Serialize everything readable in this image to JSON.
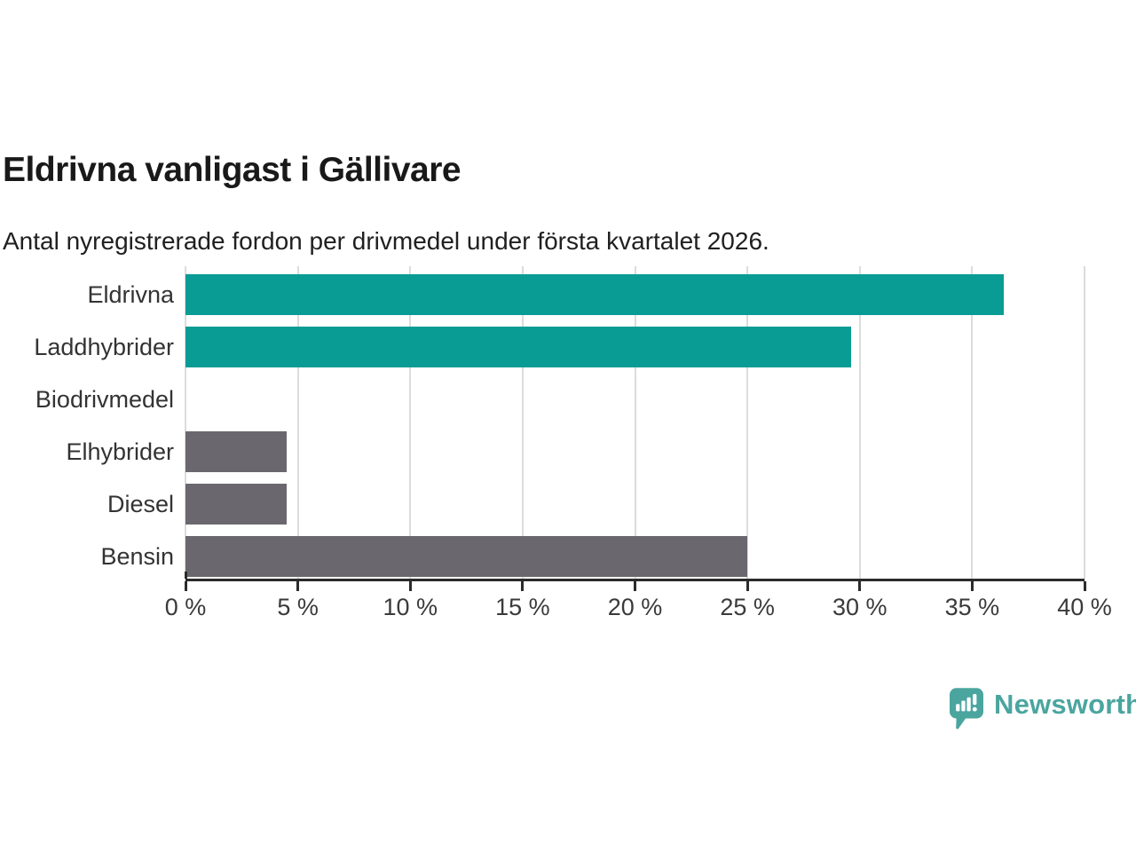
{
  "header": {
    "title": "Eldrivna vanligast i Gällivare",
    "subtitle": "Antal nyregistrerade fordon per drivmedel under första kvartalet 2026."
  },
  "chart_data": {
    "type": "bar",
    "orientation": "horizontal",
    "title": "Eldrivna vanligast i Gällivare",
    "xlabel": "",
    "ylabel": "",
    "unit": "%",
    "categories": [
      "Eldrivna",
      "Laddhybrider",
      "Biodrivmedel",
      "Elhybrider",
      "Diesel",
      "Bensin"
    ],
    "values": [
      36.4,
      29.6,
      0,
      4.5,
      4.5,
      25.0
    ],
    "bar_colors": [
      "#089c94",
      "#089c94",
      "#6a686e",
      "#6a686e",
      "#6a686e",
      "#6a686e"
    ],
    "xlim": [
      0,
      40
    ],
    "x_tick_values": [
      0,
      5,
      10,
      15,
      20,
      25,
      30,
      35,
      40
    ],
    "x_tick_labels": [
      "0 %",
      "5 %",
      "10 %",
      "15 %",
      "20 %",
      "25 %",
      "30 %",
      "35 %",
      "40 %"
    ],
    "grid": true,
    "legend": "none"
  },
  "branding": {
    "logo_text": "Newsworthy",
    "logo_icon": "bar-chart-speech-bubble-icon",
    "logo_color": "#4ba59f"
  },
  "colors": {
    "accent_teal": "#089c94",
    "neutral_gray": "#6a686e",
    "axis": "#2b2b2b",
    "gridline": "#dcdcdc",
    "title_text": "#191919",
    "label_text": "#333333"
  }
}
